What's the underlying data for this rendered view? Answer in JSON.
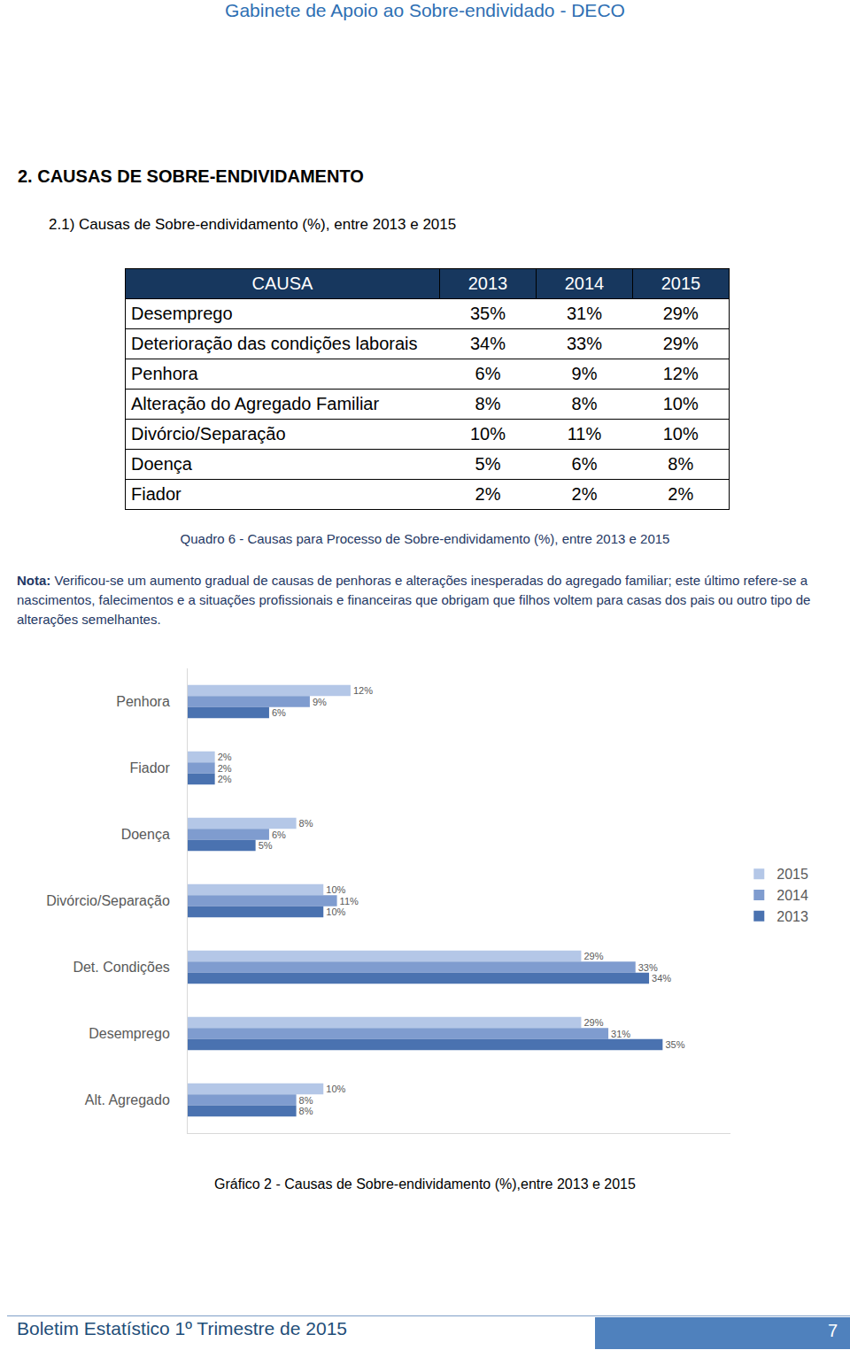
{
  "header": "Gabinete de Apoio ao Sobre-endividado - DECO",
  "section_title": "2. CAUSAS DE SOBRE-ENDIVIDAMENTO",
  "subsection_title": "2.1) Causas de Sobre-endividamento (%), entre 2013 e 2015",
  "table": {
    "columns": [
      "CAUSA",
      "2013",
      "2014",
      "2015"
    ],
    "rows": [
      [
        "Desemprego",
        "35%",
        "31%",
        "29%"
      ],
      [
        "Deterioração das condições laborais",
        "34%",
        "33%",
        "29%"
      ],
      [
        "Penhora",
        "6%",
        "9%",
        "12%"
      ],
      [
        "Alteração do Agregado Familiar",
        "8%",
        "8%",
        "10%"
      ],
      [
        "Divórcio/Separação",
        "10%",
        "11%",
        "10%"
      ],
      [
        "Doença",
        "5%",
        "6%",
        "8%"
      ],
      [
        "Fiador",
        "2%",
        "2%",
        "2%"
      ]
    ]
  },
  "table_caption": "Quadro 6 - Causas para Processo de Sobre-endividamento (%), entre 2013 e 2015",
  "note": {
    "label": "Nota:",
    "text": "Verificou-se um aumento gradual de causas de penhoras e alterações inesperadas do agregado familiar; este último refere-se a nascimentos, falecimentos e a situações profissionais e financeiras que obrigam que filhos voltem para casas dos pais ou outro tipo de alterações semelhantes."
  },
  "chart_data": {
    "type": "bar",
    "orientation": "horizontal",
    "categories": [
      "Penhora",
      "Fiador",
      "Doença",
      "Divórcio/Separação",
      "Det. Condições",
      "Desemprego",
      "Alt. Agregado"
    ],
    "series": [
      {
        "name": "2015",
        "color": "#b4c7e7",
        "values": [
          12,
          2,
          8,
          10,
          29,
          29,
          10
        ],
        "value_labels": [
          "12%",
          "2%",
          "8%",
          "10%",
          "29%",
          "29%",
          "10%"
        ]
      },
      {
        "name": "2014",
        "color": "#7f9ccf",
        "values": [
          9,
          2,
          6,
          11,
          33,
          31,
          8
        ],
        "value_labels": [
          "9%",
          "2%",
          "6%",
          "11%",
          "33%",
          "31%",
          "8%"
        ]
      },
      {
        "name": "2013",
        "color": "#4a72b0",
        "values": [
          6,
          2,
          5,
          10,
          34,
          35,
          8
        ],
        "value_labels": [
          "6%",
          "2%",
          "5%",
          "10%",
          "34%",
          "35%",
          "8%"
        ]
      }
    ],
    "xlim": [
      0,
      40
    ],
    "tick_labels": "y",
    "data_labels": true,
    "grid": false,
    "legend": "right"
  },
  "chart_caption": "Gráfico 2 - Causas de Sobre-endividamento (%),entre 2013 e 2015",
  "footer": {
    "text": "Boletim Estatístico 1º Trimestre de 2015",
    "page": "7"
  }
}
